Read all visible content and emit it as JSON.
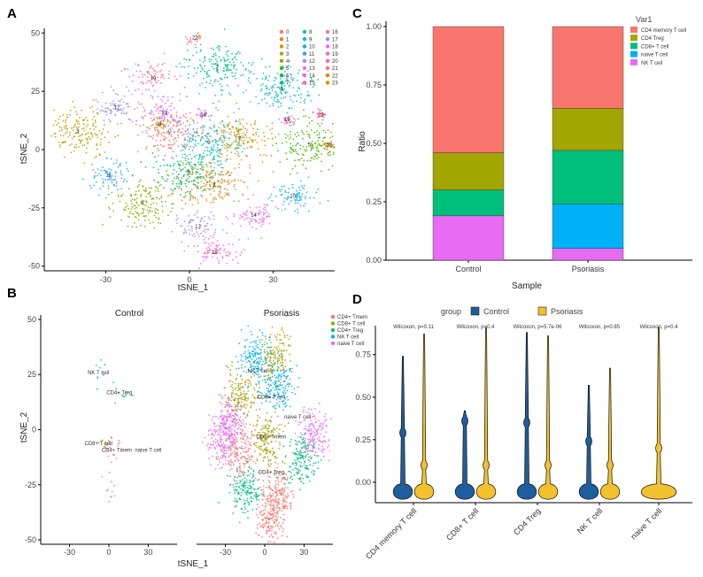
{
  "panels": {
    "A": "A",
    "B": "B",
    "C": "C",
    "D": "D"
  },
  "chart_data": [
    {
      "panel": "A",
      "type": "scatter",
      "xlabel": "tSNE_1",
      "ylabel": "tSNE_2",
      "xticks": [
        "-30",
        "0",
        "30"
      ],
      "yticks": [
        "50",
        "25",
        "0",
        "-25",
        "-50"
      ],
      "xlim": [
        -52,
        52
      ],
      "ylim": [
        -52,
        52
      ],
      "legend": {
        "placement": "top-right",
        "entries": [
          "0",
          "1",
          "2",
          "3",
          "4",
          "5",
          "6",
          "7",
          "8",
          "9",
          "10",
          "11",
          "12",
          "13",
          "14",
          "15",
          "16",
          "17",
          "18",
          "19",
          "20",
          "21",
          "22",
          "23"
        ]
      },
      "clusters": [
        {
          "id": "0",
          "x": -7,
          "y": 8,
          "color": "#F8766D"
        },
        {
          "id": "1",
          "x": 9,
          "y": -15,
          "color": "#E7851E"
        },
        {
          "id": "2",
          "x": 18,
          "y": 5,
          "color": "#D09400"
        },
        {
          "id": "3",
          "x": -40,
          "y": 8,
          "color": "#B2A100"
        },
        {
          "id": "4",
          "x": -17,
          "y": -23,
          "color": "#89AC00"
        },
        {
          "id": "5",
          "x": 43,
          "y": 2,
          "color": "#45B500"
        },
        {
          "id": "6",
          "x": 0,
          "y": -10,
          "color": "#00BC51"
        },
        {
          "id": "7",
          "x": 10,
          "y": 35,
          "color": "#00C087"
        },
        {
          "id": "8",
          "x": 33,
          "y": 26,
          "color": "#00C0B2"
        },
        {
          "id": "9",
          "x": 7,
          "y": 3,
          "color": "#00BCD6"
        },
        {
          "id": "10",
          "x": 37,
          "y": -20,
          "color": "#00B3F2"
        },
        {
          "id": "11",
          "x": -29,
          "y": -11,
          "color": "#29A3FF"
        },
        {
          "id": "12",
          "x": -26,
          "y": 18,
          "color": "#9C8DFF"
        },
        {
          "id": "13",
          "x": -9,
          "y": 16,
          "color": "#D277FF"
        },
        {
          "id": "14",
          "x": 23,
          "y": -28,
          "color": "#F166E8"
        },
        {
          "id": "15",
          "x": 9,
          "y": -44,
          "color": "#FF61C7"
        },
        {
          "id": "16",
          "x": -13,
          "y": 31,
          "color": "#FF6C91"
        },
        {
          "id": "17",
          "x": 3,
          "y": -33,
          "color": "#9590FF"
        },
        {
          "id": "18",
          "x": 5,
          "y": 15,
          "color": "#E76BF3"
        },
        {
          "id": "19",
          "x": 35,
          "y": 13,
          "color": "#FF62BC"
        },
        {
          "id": "20",
          "x": 47,
          "y": 15,
          "color": "#FF6A98"
        },
        {
          "id": "21",
          "x": 2,
          "y": 48,
          "color": "#F8766D"
        },
        {
          "id": "22",
          "x": 50,
          "y": 2,
          "color": "#E58700"
        },
        {
          "id": "23",
          "x": -11,
          "y": 11,
          "color": "#C99800"
        }
      ]
    },
    {
      "panel": "B",
      "type": "scatter",
      "xlabel": "tSNE_1",
      "ylabel": "tSNE_2",
      "facets": [
        "Control",
        "Psoriasis"
      ],
      "xticks": [
        "-30",
        "0",
        "30"
      ],
      "yticks": [
        "50",
        "25",
        "0",
        "-25",
        "-50"
      ],
      "xlim": [
        -52,
        52
      ],
      "ylim": [
        -52,
        52
      ],
      "legend": {
        "placement": "top-right",
        "entries": [
          {
            "label": "CD4+ Tmem",
            "color": "#F8766D"
          },
          {
            "label": "CD8+ T cell",
            "color": "#A3A500"
          },
          {
            "label": "CD4+ Treg",
            "color": "#00BF7D"
          },
          {
            "label": "NK T cell",
            "color": "#00B0F6"
          },
          {
            "label": "naive T cell",
            "color": "#E76BF3"
          }
        ]
      },
      "annotations": {
        "control": [
          {
            "text": "NK T cell",
            "x": -8,
            "y": 25
          },
          {
            "text": "CD4+ Treg",
            "x": 8,
            "y": 16
          },
          {
            "text": "CD8+ T cell",
            "x": -8,
            "y": -7
          },
          {
            "text": "CD4+ Tmem",
            "x": 6,
            "y": -10
          },
          {
            "text": "naive T cell",
            "x": 30,
            "y": -10
          }
        ],
        "psoriasis": [
          {
            "text": "NK T cell",
            "x": -5,
            "y": 26
          },
          {
            "text": "CD8+ T cell",
            "x": 5,
            "y": 14
          },
          {
            "text": "naive T cell",
            "x": 25,
            "y": 5
          },
          {
            "text": "CD4+ Tmem",
            "x": 5,
            "y": -4
          },
          {
            "text": "CD4+ Treg",
            "x": 5,
            "y": -20
          }
        ]
      },
      "groups": [
        {
          "label": "CD4+ Tmem",
          "control": [
            {
              "x": 3,
              "y": -9
            },
            {
              "x": 0,
              "y": -27
            }
          ],
          "psoriasis": [
            {
              "x": -19,
              "y": -10
            },
            {
              "x": 10,
              "y": -28
            },
            {
              "x": 3,
              "y": -41
            }
          ]
        },
        {
          "label": "CD8+ T cell",
          "control": [
            {
              "x": -3,
              "y": -6
            }
          ],
          "psoriasis": [
            {
              "x": 8,
              "y": 32
            },
            {
              "x": 2,
              "y": -5
            },
            {
              "x": -18,
              "y": 16
            }
          ]
        },
        {
          "label": "CD4+ Treg",
          "control": [
            {
              "x": 10,
              "y": 15
            }
          ],
          "psoriasis": [
            {
              "x": -15,
              "y": -28
            },
            {
              "x": 28,
              "y": -13
            }
          ]
        },
        {
          "label": "NK T cell",
          "control": [
            {
              "x": -6,
              "y": 26
            }
          ],
          "psoriasis": [
            {
              "x": -8,
              "y": 32
            },
            {
              "x": 10,
              "y": 20
            }
          ]
        },
        {
          "label": "naive T cell",
          "control": [
            {
              "x": 2,
              "y": -11
            }
          ],
          "psoriasis": [
            {
              "x": -32,
              "y": -5
            },
            {
              "x": -25,
              "y": 5
            },
            {
              "x": 38,
              "y": -2
            }
          ]
        }
      ]
    },
    {
      "panel": "C",
      "type": "bar",
      "stacked": true,
      "xlabel": "Sample",
      "ylabel": "Ratio",
      "yticks": [
        "0.00",
        "0.25",
        "0.50",
        "0.75",
        "1.00"
      ],
      "ylim": [
        0,
        1
      ],
      "categories": [
        "Control",
        "Psoriasis"
      ],
      "legend": {
        "title": "Var1",
        "placement": "top-right"
      },
      "series": [
        {
          "name": "NK T cell",
          "color": "#E76BF3",
          "values": [
            0.19,
            0.05
          ]
        },
        {
          "name": "naive T cell",
          "color": "#00B0F6",
          "values": [
            0.0,
            0.19
          ]
        },
        {
          "name": "CD8+ T cell",
          "color": "#00BF7D",
          "values": [
            0.11,
            0.23
          ]
        },
        {
          "name": "CD4 Treg",
          "color": "#A3A500",
          "values": [
            0.16,
            0.18
          ]
        },
        {
          "name": "CD4 memory T cell",
          "color": "#F8766D",
          "values": [
            0.54,
            0.35
          ]
        }
      ],
      "legend_order": [
        "CD4 memory T cell",
        "CD4 Treg",
        "CD8+ T cell",
        "naive T cell",
        "NK T cell"
      ]
    },
    {
      "panel": "D",
      "type": "violin",
      "ylabel": "",
      "yticks": [
        "0.00",
        "0.25",
        "0.50",
        "0.75"
      ],
      "ylim": [
        -0.12,
        0.92
      ],
      "legend": {
        "title": "group",
        "placement": "top",
        "entries": [
          {
            "name": "Control",
            "color": "#1F5E9E"
          },
          {
            "name": "Psoriasis",
            "color": "#F2C12E"
          }
        ]
      },
      "categories": [
        "CD4 memory T cell",
        "CD8+ T cell",
        "CD4 Treg",
        "NK T cell",
        "naive T cell"
      ],
      "tests": [
        "Wilcoxon,  p=0.11",
        "Wilcoxon,  p=0.4",
        "Wilcoxon,  p=5.7e-06",
        "Wilcoxon,  p=0.85",
        "Wilcoxon,  p=0.4"
      ],
      "series": [
        {
          "name": "Control",
          "max": [
            0.74,
            0.42,
            0.88,
            0.57,
            null
          ],
          "mean": [
            0.29,
            0.36,
            0.35,
            0.24,
            null
          ]
        },
        {
          "name": "Psoriasis",
          "max": [
            0.87,
            0.91,
            0.86,
            0.67,
            0.91
          ],
          "mean": [
            0.1,
            0.1,
            0.1,
            0.1,
            0.2
          ]
        }
      ]
    }
  ]
}
